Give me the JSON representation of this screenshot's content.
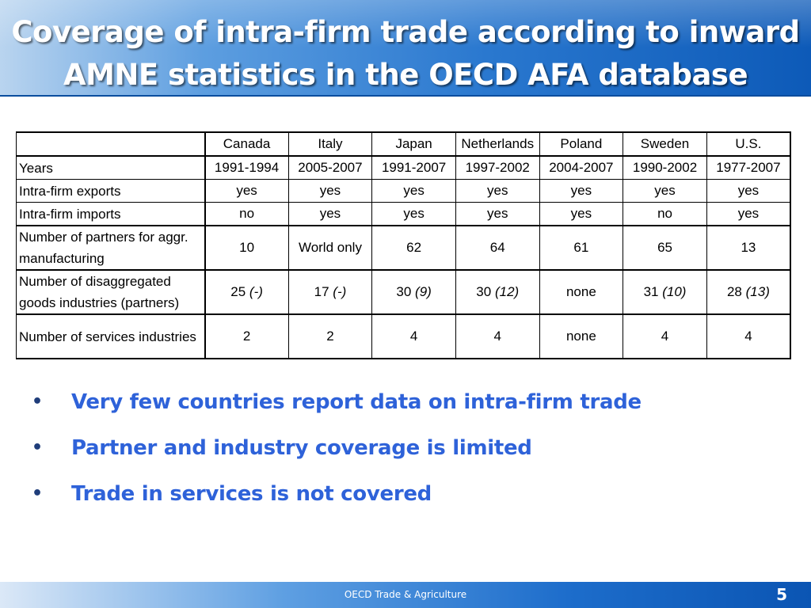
{
  "title": {
    "line1": "Coverage of intra-firm trade according to inward",
    "line2": "AMNE statistics in the OECD AFA database"
  },
  "table": {
    "columns": [
      "Canada",
      "Italy",
      "Japan",
      "Netherlands",
      "Poland",
      "Sweden",
      "U.S."
    ],
    "rows": [
      {
        "label": "Years",
        "cells": [
          {
            "v": "1991-1994"
          },
          {
            "v": "2005-2007"
          },
          {
            "v": "1991-2007"
          },
          {
            "v": "1997-2002"
          },
          {
            "v": "2004-2007"
          },
          {
            "v": "1990-2002"
          },
          {
            "v": "1977-2007"
          }
        ]
      },
      {
        "label": "Intra-firm exports",
        "cells": [
          {
            "v": "yes"
          },
          {
            "v": "yes"
          },
          {
            "v": "yes"
          },
          {
            "v": "yes"
          },
          {
            "v": "yes"
          },
          {
            "v": "yes"
          },
          {
            "v": "yes"
          }
        ]
      },
      {
        "label": "Intra-firm imports",
        "cells": [
          {
            "v": "no"
          },
          {
            "v": "yes"
          },
          {
            "v": "yes"
          },
          {
            "v": "yes"
          },
          {
            "v": "yes"
          },
          {
            "v": "no"
          },
          {
            "v": "yes"
          }
        ]
      },
      {
        "label": "Number of partners for aggr. manufacturing",
        "cells": [
          {
            "v": "10"
          },
          {
            "v": "World only"
          },
          {
            "v": "62"
          },
          {
            "v": "64"
          },
          {
            "v": "61"
          },
          {
            "v": "65"
          },
          {
            "v": "13"
          }
        ]
      },
      {
        "label": "Number of disaggregated goods industries (partners)",
        "cells": [
          {
            "v": "25",
            "p": "(-)"
          },
          {
            "v": "17",
            "p": "(-)"
          },
          {
            "v": "30",
            "p": "(9)"
          },
          {
            "v": "30",
            "p": "(12)"
          },
          {
            "v": "none"
          },
          {
            "v": "31",
            "p": "(10)"
          },
          {
            "v": "28",
            "p": "(13)"
          }
        ]
      },
      {
        "label": "Number of services industries",
        "cells": [
          {
            "v": "2"
          },
          {
            "v": "2"
          },
          {
            "v": "4"
          },
          {
            "v": "4"
          },
          {
            "v": "none"
          },
          {
            "v": "4"
          },
          {
            "v": "4"
          }
        ]
      }
    ]
  },
  "bullets": [
    "Very few countries report data on intra-firm trade",
    "Partner and industry coverage is limited",
    "Trade in services is not covered"
  ],
  "footer": {
    "text": "OECD Trade & Agriculture",
    "page": "5"
  }
}
